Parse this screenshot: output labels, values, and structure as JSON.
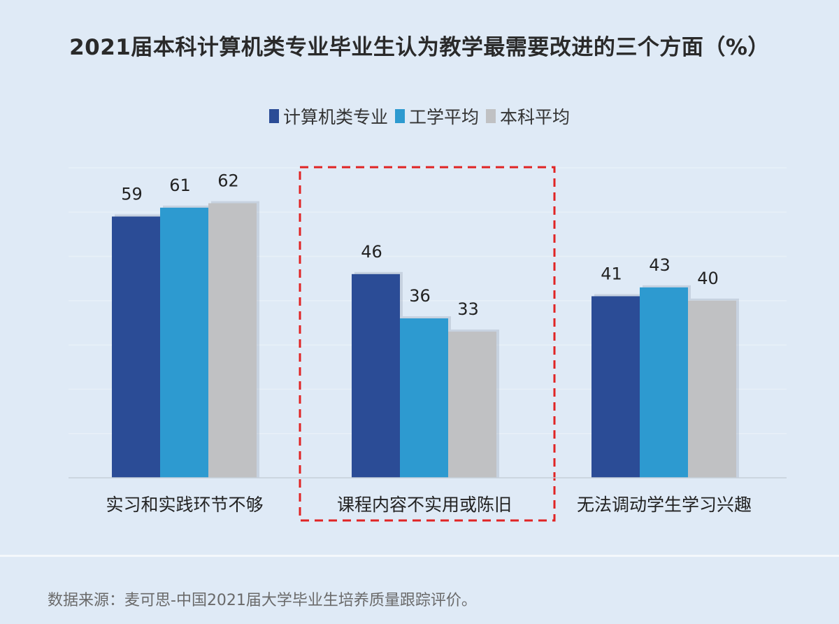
{
  "chart_data": {
    "type": "bar",
    "title": "2021届本科计算机类专业毕业生认为教学最需要改进的三个方面（%）",
    "categories": [
      "实习和实践环节不够",
      "课程内容不实用或陈旧",
      "无法调动学生学习兴趣"
    ],
    "series": [
      {
        "name": "计算机类专业",
        "color": "#2b4c96",
        "values": [
          59,
          46,
          41
        ]
      },
      {
        "name": "工学平均",
        "color": "#2d9ad0",
        "values": [
          61,
          36,
          43
        ]
      },
      {
        "name": "本科平均",
        "color": "#c0c1c3",
        "values": [
          62,
          33,
          40
        ]
      }
    ],
    "xlabel": "",
    "ylabel": "",
    "ylim": [
      0,
      70
    ],
    "grid": true,
    "legend_placement": "top-center",
    "highlight_category": "课程内容不实用或陈旧",
    "highlight_color": "#e02424"
  },
  "footer": {
    "source": "数据来源：麦可思-中国2021届大学毕业生培养质量跟踪评价。"
  }
}
